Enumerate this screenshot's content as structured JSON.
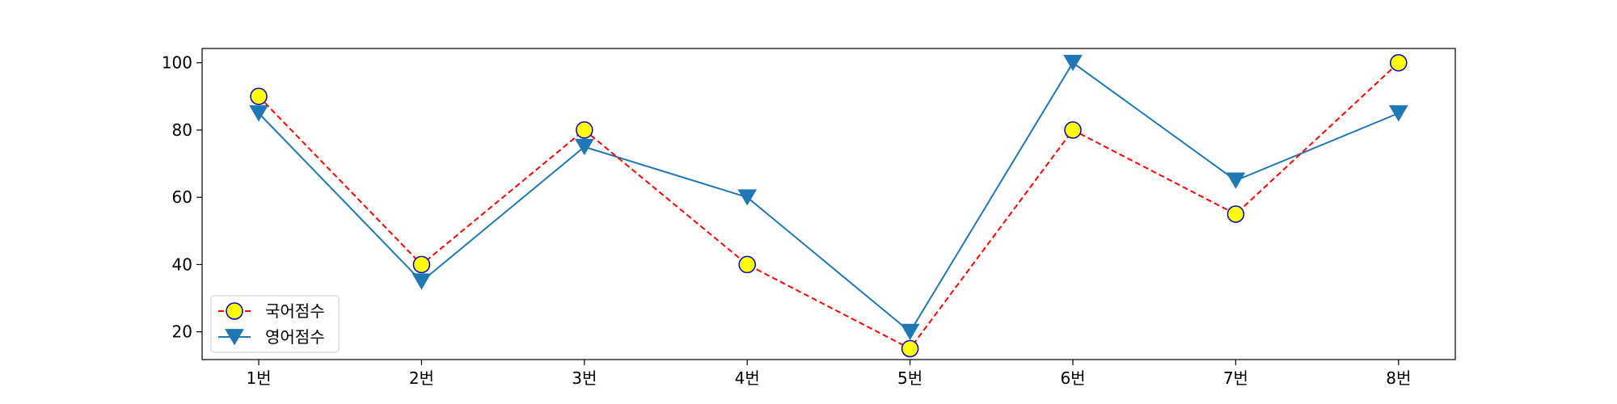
{
  "chart_data": {
    "type": "line",
    "categories": [
      "1번",
      "2번",
      "3번",
      "4번",
      "5번",
      "6번",
      "7번",
      "8번"
    ],
    "series": [
      {
        "name": "국어점수",
        "values": [
          90,
          40,
          80,
          40,
          15,
          80,
          55,
          100
        ],
        "color": "#ff0000",
        "line_style": "dashed",
        "marker": "circle",
        "marker_face_color": "#ffff00",
        "marker_edge_color": "#0000cc"
      },
      {
        "name": "영어점수",
        "values": [
          85,
          35,
          75,
          60,
          20,
          100,
          65,
          85
        ],
        "color": "#1f77b4",
        "line_style": "solid",
        "marker": "triangle-down"
      }
    ],
    "ylim": [
      11.75,
      104.25
    ],
    "yticks": [
      20,
      40,
      60,
      80,
      100
    ],
    "grid": false,
    "legend_position": "lower-left"
  }
}
